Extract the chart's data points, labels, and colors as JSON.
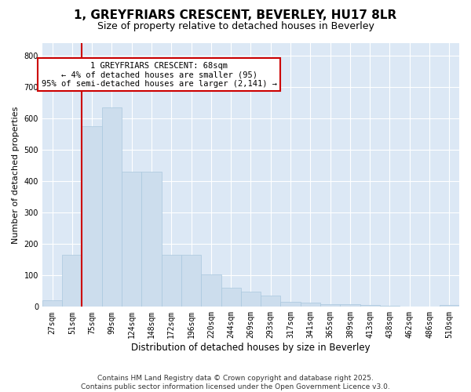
{
  "title": "1, GREYFRIARS CRESCENT, BEVERLEY, HU17 8LR",
  "subtitle": "Size of property relative to detached houses in Beverley",
  "xlabel": "Distribution of detached houses by size in Beverley",
  "ylabel": "Number of detached properties",
  "bins": [
    "27sqm",
    "51sqm",
    "75sqm",
    "99sqm",
    "124sqm",
    "148sqm",
    "172sqm",
    "196sqm",
    "220sqm",
    "244sqm",
    "269sqm",
    "293sqm",
    "317sqm",
    "341sqm",
    "365sqm",
    "389sqm",
    "413sqm",
    "438sqm",
    "462sqm",
    "486sqm",
    "510sqm"
  ],
  "values": [
    20,
    165,
    575,
    635,
    430,
    430,
    165,
    165,
    103,
    60,
    48,
    35,
    15,
    13,
    8,
    8,
    5,
    3,
    2,
    1,
    5
  ],
  "bar_color": "#ccdded",
  "bar_edge_color": "#aac8de",
  "bar_width": 1.0,
  "vline_color": "#cc0000",
  "annotation_text": "1 GREYFRIARS CRESCENT: 68sqm\n← 4% of detached houses are smaller (95)\n95% of semi-detached houses are larger (2,141) →",
  "annotation_box_color": "white",
  "annotation_box_edge": "#cc0000",
  "ylim": [
    0,
    840
  ],
  "yticks": [
    0,
    100,
    200,
    300,
    400,
    500,
    600,
    700,
    800
  ],
  "background_color": "#dce8f5",
  "footer1": "Contains HM Land Registry data © Crown copyright and database right 2025.",
  "footer2": "Contains public sector information licensed under the Open Government Licence v3.0.",
  "title_fontsize": 11,
  "subtitle_fontsize": 9,
  "tick_fontsize": 7,
  "ylabel_fontsize": 8,
  "xlabel_fontsize": 8.5,
  "annotation_fontsize": 7.5,
  "footer_fontsize": 6.5
}
